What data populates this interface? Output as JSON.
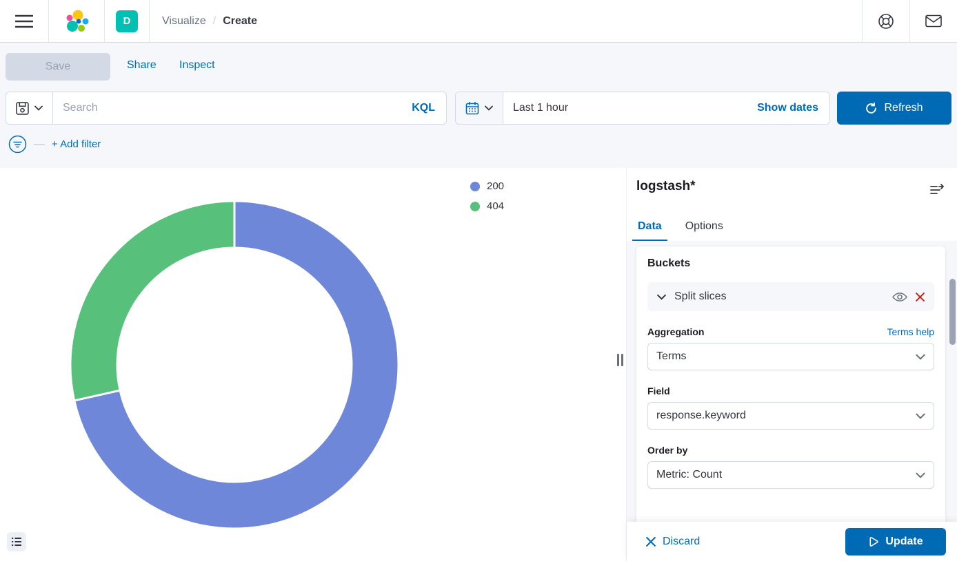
{
  "header": {
    "breadcrumb": {
      "parent": "Visualize",
      "separator": "/",
      "current": "Create"
    },
    "app_badge": "D"
  },
  "actions": {
    "save": "Save",
    "share": "Share",
    "inspect": "Inspect"
  },
  "query_bar": {
    "search_placeholder": "Search",
    "language": "KQL",
    "time_range": "Last 1 hour",
    "show_dates": "Show dates",
    "refresh": "Refresh",
    "add_filter": "+ Add filter"
  },
  "chart_data": {
    "type": "pie",
    "donut": true,
    "categories": [
      "200",
      "404"
    ],
    "values": [
      71.5,
      28.5
    ],
    "unit": "percent-of-total",
    "colors": [
      "#6F87D8",
      "#57C17B"
    ],
    "start_angle_deg": 0,
    "direction": "clockwise",
    "legend_position": "right",
    "title": ""
  },
  "legend": {
    "items": [
      {
        "label": "200"
      },
      {
        "label": "404"
      }
    ]
  },
  "panel": {
    "index_pattern": "logstash*",
    "tabs": [
      {
        "label": "Data"
      },
      {
        "label": "Options"
      }
    ],
    "active_tab": "Data",
    "buckets": {
      "heading": "Buckets",
      "bucket_row": "Split slices",
      "aggregation_label": "Aggregation",
      "aggregation_help": "Terms help",
      "aggregation_value": "Terms",
      "field_label": "Field",
      "field_value": "response.keyword",
      "order_by_label": "Order by",
      "order_by_value": "Metric: Count"
    },
    "footer": {
      "discard": "Discard",
      "update": "Update"
    }
  },
  "colors": {
    "primary": "#006bb4",
    "danger": "#bd271e",
    "pie_blue": "#6F87D8",
    "pie_green": "#57C17B",
    "badge_teal": "#00bfb3"
  }
}
